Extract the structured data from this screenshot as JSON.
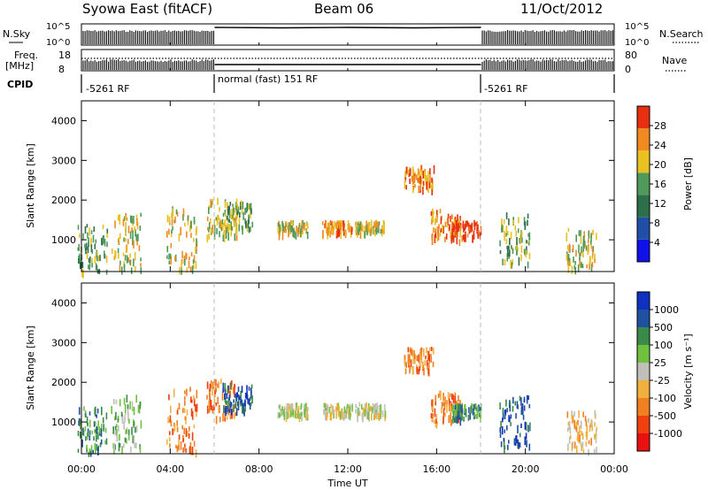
{
  "header": {
    "station": "Syowa East (fitACF)",
    "beam": "Beam 06",
    "date": "11/Oct/2012"
  },
  "status": {
    "nsky_label": "N.Sky",
    "nsearch_label": "N.Search",
    "nsky_ticks": [
      "10^5",
      "10^0"
    ],
    "nsearch_ticks": [
      "10^5",
      "10^0"
    ],
    "freq_label_line1": "Freq.",
    "freq_label_line2": "[MHz]",
    "freq_ticks": [
      "18",
      "8"
    ],
    "nave_label": "Nave",
    "nave_ticks": [
      "80",
      "0"
    ],
    "cpid_label": "CPID",
    "cpid_segments": [
      {
        "text": "-5261 RF",
        "start_hour": 0,
        "end_hour": 6
      },
      {
        "text": "normal (fast) 151 RF",
        "start_hour": 6,
        "end_hour": 18
      },
      {
        "text": "-5261 RF",
        "start_hour": 18,
        "end_hour": 24
      }
    ]
  },
  "chart_data": [
    {
      "type": "heatmap",
      "name": "power",
      "ylabel": "Slant Range [km]",
      "ylim": [
        200,
        4500
      ],
      "yticks": [
        "1000",
        "2000",
        "3000",
        "4000"
      ],
      "colorbar_label": "Power [dB]",
      "colorbar_ticks": [
        "28",
        "24",
        "20",
        "16",
        "12",
        "8",
        "4"
      ],
      "colors": [
        "#1010e8",
        "#1f4fa6",
        "#2e6e4a",
        "#4f9a5a",
        "#e8c020",
        "#f08a20",
        "#e83010"
      ],
      "data": [
        {
          "hour": 0.5,
          "r0": 250,
          "r1": 1400,
          "level": 3
        },
        {
          "hour": 2.0,
          "r0": 300,
          "r1": 1700,
          "level": 4
        },
        {
          "hour": 4.5,
          "r0": 300,
          "r1": 1900,
          "level": 4
        },
        {
          "hour": 6.3,
          "r0": 1100,
          "r1": 2100,
          "level": 4
        },
        {
          "hour": 7.0,
          "r0": 1300,
          "r1": 2000,
          "level": 3
        },
        {
          "hour": 9.5,
          "r0": 1200,
          "r1": 1500,
          "level": 4
        },
        {
          "hour": 11.5,
          "r0": 1200,
          "r1": 1500,
          "level": 5
        },
        {
          "hour": 13.0,
          "r0": 1200,
          "r1": 1500,
          "level": 4
        },
        {
          "hour": 15.2,
          "r0": 2300,
          "r1": 2900,
          "level": 5
        },
        {
          "hour": 16.4,
          "r0": 1000,
          "r1": 1800,
          "level": 5
        },
        {
          "hour": 17.3,
          "r0": 1100,
          "r1": 1500,
          "level": 6
        },
        {
          "hour": 19.5,
          "r0": 400,
          "r1": 1700,
          "level": 3
        },
        {
          "hour": 22.5,
          "r0": 300,
          "r1": 1300,
          "level": 4
        }
      ]
    },
    {
      "type": "heatmap",
      "name": "velocity",
      "ylabel": "Slant Range [km]",
      "ylim": [
        200,
        4500
      ],
      "yticks": [
        "1000",
        "2000",
        "3000",
        "4000"
      ],
      "colorbar_label": "Velocity [m s⁻¹]",
      "colorbar_ticks": [
        "1000",
        "500",
        "100",
        "25",
        "-25",
        "-100",
        "-500",
        "-1000"
      ],
      "colors": [
        "#e81010",
        "#f04010",
        "#f08020",
        "#f0b040",
        "#c0c0b8",
        "#70c040",
        "#3a8a4a",
        "#2050a0",
        "#1030c0"
      ],
      "data": [
        {
          "hour": 0.5,
          "r0": 250,
          "r1": 1400,
          "level": 6
        },
        {
          "hour": 2.0,
          "r0": 300,
          "r1": 1700,
          "level": 5
        },
        {
          "hour": 4.5,
          "r0": 300,
          "r1": 1900,
          "level": 2
        },
        {
          "hour": 6.3,
          "r0": 1100,
          "r1": 2100,
          "level": 2
        },
        {
          "hour": 7.0,
          "r0": 1300,
          "r1": 2000,
          "level": 7
        },
        {
          "hour": 9.5,
          "r0": 1200,
          "r1": 1500,
          "level": 4
        },
        {
          "hour": 11.5,
          "r0": 1200,
          "r1": 1500,
          "level": 4
        },
        {
          "hour": 13.0,
          "r0": 1200,
          "r1": 1500,
          "level": 4
        },
        {
          "hour": 15.2,
          "r0": 2300,
          "r1": 2900,
          "level": 2
        },
        {
          "hour": 16.4,
          "r0": 1000,
          "r1": 1800,
          "level": 2
        },
        {
          "hour": 17.3,
          "r0": 1100,
          "r1": 1500,
          "level": 6
        },
        {
          "hour": 19.5,
          "r0": 400,
          "r1": 1700,
          "level": 7
        },
        {
          "hour": 22.5,
          "r0": 300,
          "r1": 1300,
          "level": 3
        }
      ]
    }
  ],
  "x_axis": {
    "label": "Time UT",
    "xlim": [
      0,
      24
    ],
    "ticks": [
      "00:00",
      "04:00",
      "08:00",
      "12:00",
      "16:00",
      "20:00",
      "00:00"
    ]
  }
}
